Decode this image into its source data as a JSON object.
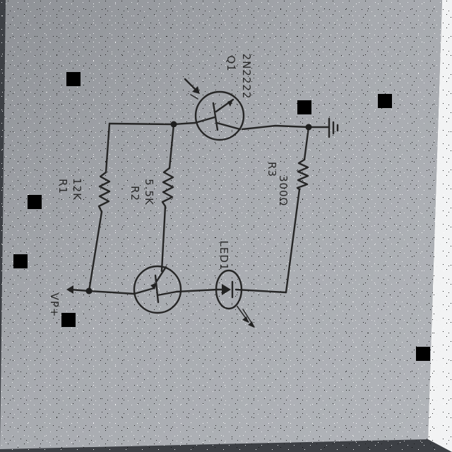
{
  "diagram": {
    "labels": {
      "r1_name": "R1",
      "r1_value": "12K",
      "r2_name": "R2",
      "r2_value": "5.5K",
      "r3_name": "R3",
      "r3_value": "300Ω",
      "q1_name": "Q1",
      "q1_part": "2N2222",
      "d1_name": "LED1",
      "supply": "VP+"
    },
    "icons": [
      "ground-icon",
      "resistor-icon",
      "transistor-icon",
      "led-icon",
      "light-arrow-icon"
    ],
    "colors": {
      "paper": "#a3a6ab",
      "ink": "#262626",
      "redaction": "#000000"
    }
  }
}
